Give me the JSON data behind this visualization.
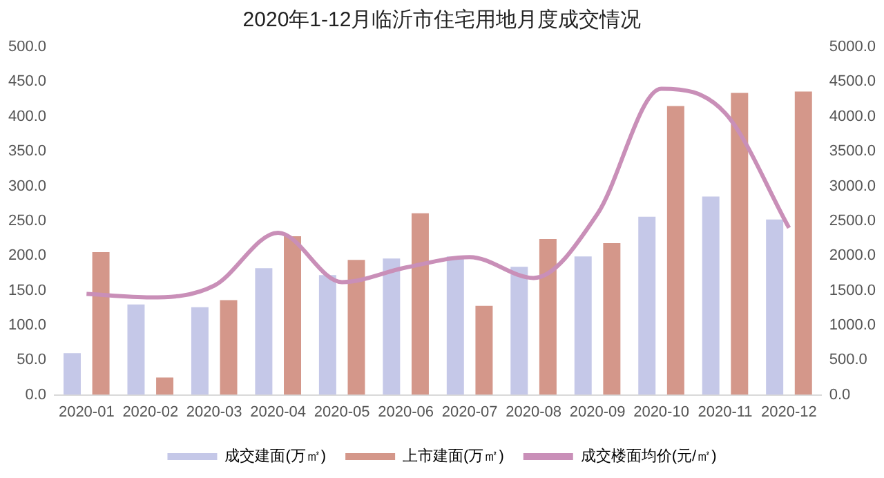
{
  "chart_data": {
    "type": "bar",
    "title": "2020年1-12月临沂市住宅用地月度成交情况",
    "categories": [
      "2020-01",
      "2020-02",
      "2020-03",
      "2020-04",
      "2020-05",
      "2020-06",
      "2020-07",
      "2020-08",
      "2020-09",
      "2020-10",
      "2020-11",
      "2020-12"
    ],
    "series": [
      {
        "name": "成交建面(万㎡)",
        "color": "#c5c8e8",
        "values": [
          60,
          130,
          126,
          182,
          172,
          196,
          199,
          184,
          199,
          256,
          285,
          252
        ]
      },
      {
        "name": "上市建面(万㎡)",
        "color": "#d4978a",
        "values": [
          205,
          25,
          136,
          228,
          194,
          261,
          128,
          224,
          218,
          415,
          434,
          436
        ]
      },
      {
        "name": "成交楼面均价(元/㎡)",
        "type": "line",
        "axis": "y2",
        "color": "#c98fb8",
        "values": [
          1450,
          1400,
          1570,
          2330,
          1620,
          1830,
          1980,
          1680,
          2600,
          4400,
          4050,
          2400
        ]
      }
    ],
    "ylim": [
      0,
      500
    ],
    "yticks": [
      {
        "value": 0,
        "label": "0.0"
      },
      {
        "value": 50,
        "label": "50.0"
      },
      {
        "value": 100,
        "label": "100.0"
      },
      {
        "value": 150,
        "label": "150.0"
      },
      {
        "value": 200,
        "label": "200.0"
      },
      {
        "value": 250,
        "label": "250.0"
      },
      {
        "value": 300,
        "label": "300.0"
      },
      {
        "value": 350,
        "label": "350.0"
      },
      {
        "value": 400,
        "label": "400.0"
      },
      {
        "value": 450,
        "label": "450.0"
      },
      {
        "value": 500,
        "label": "500.0"
      }
    ],
    "y2lim": [
      0,
      5000
    ],
    "y2ticks": [
      {
        "value": 0,
        "label": "0.0"
      },
      {
        "value": 500,
        "label": "500.0"
      },
      {
        "value": 1000,
        "label": "1000.0"
      },
      {
        "value": 1500,
        "label": "1500.0"
      },
      {
        "value": 2000,
        "label": "2000.0"
      },
      {
        "value": 2500,
        "label": "2500.0"
      },
      {
        "value": 3000,
        "label": "3000.0"
      },
      {
        "value": 3500,
        "label": "3500.0"
      },
      {
        "value": 4000,
        "label": "4000.0"
      },
      {
        "value": 4500,
        "label": "4500.0"
      },
      {
        "value": 5000,
        "label": "5000.0"
      }
    ],
    "grid": false,
    "legend": "bottom",
    "marker": "none"
  }
}
